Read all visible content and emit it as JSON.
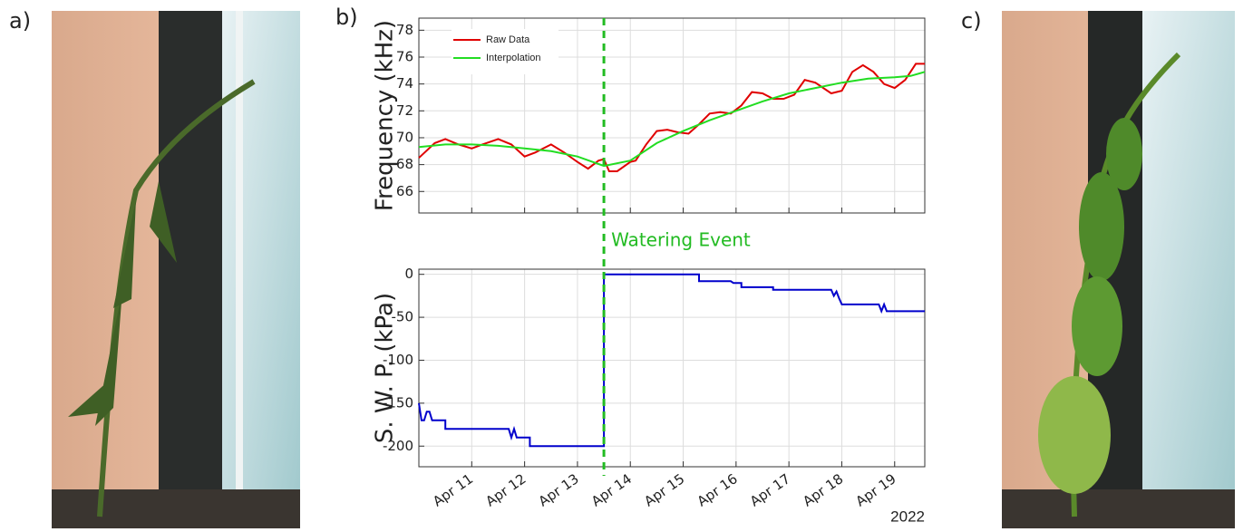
{
  "panel_labels": [
    "a)",
    "b)",
    "c)"
  ],
  "chart_data": [
    {
      "type": "line",
      "ylabel": "Frequency (kHz)",
      "xlim": [
        10.0,
        19.57
      ],
      "xticks": [
        11,
        12,
        13,
        14,
        15,
        16,
        17,
        18,
        19
      ],
      "ylim": [
        64.4,
        78.9
      ],
      "yticks": [
        66,
        68,
        70,
        72,
        74,
        76,
        78
      ],
      "grid": true,
      "legend": "upper left",
      "annotations": [
        {
          "text": "Watering Event",
          "x": 13.5,
          "color": "#22bb22"
        }
      ],
      "series": [
        {
          "name": "Raw Data",
          "color": "#e00000",
          "x": [
            10.0,
            10.3,
            10.5,
            10.75,
            11.0,
            11.2,
            11.5,
            11.75,
            12.0,
            12.2,
            12.5,
            12.75,
            13.0,
            13.2,
            13.4,
            13.5,
            13.6,
            13.75,
            14.0,
            14.1,
            14.3,
            14.5,
            14.7,
            14.9,
            15.1,
            15.3,
            15.5,
            15.7,
            15.9,
            16.1,
            16.3,
            16.5,
            16.7,
            16.9,
            17.1,
            17.3,
            17.5,
            17.8,
            18.0,
            18.2,
            18.4,
            18.6,
            18.8,
            19.0,
            19.2,
            19.4,
            19.57
          ],
          "values": [
            68.5,
            69.6,
            69.9,
            69.5,
            69.2,
            69.5,
            69.9,
            69.5,
            68.6,
            68.9,
            69.5,
            68.9,
            68.2,
            67.7,
            68.3,
            68.4,
            67.5,
            67.5,
            68.2,
            68.3,
            69.5,
            70.5,
            70.6,
            70.4,
            70.3,
            71.0,
            71.8,
            71.9,
            71.8,
            72.4,
            73.4,
            73.3,
            72.9,
            72.9,
            73.2,
            74.3,
            74.1,
            73.3,
            73.5,
            74.9,
            75.4,
            74.9,
            74.0,
            73.7,
            74.3,
            75.5,
            75.5
          ]
        },
        {
          "name": "Interpolation",
          "color": "#22dd22",
          "x": [
            10.0,
            10.5,
            11.0,
            11.5,
            12.0,
            12.5,
            13.0,
            13.5,
            14.0,
            14.5,
            15.0,
            15.5,
            16.0,
            16.5,
            17.0,
            17.5,
            18.0,
            18.5,
            19.0,
            19.3,
            19.57
          ],
          "values": [
            69.3,
            69.5,
            69.5,
            69.4,
            69.2,
            69.0,
            68.6,
            67.9,
            68.3,
            69.6,
            70.5,
            71.3,
            72.0,
            72.7,
            73.3,
            73.7,
            74.1,
            74.4,
            74.5,
            74.6,
            74.9
          ]
        }
      ]
    },
    {
      "type": "line",
      "ylabel": "S. W. P. (kPa)",
      "xlabel": "2022",
      "xlim": [
        10.0,
        19.57
      ],
      "xticks": [
        {
          "value": 11,
          "label": "Apr 11"
        },
        {
          "value": 12,
          "label": "Apr 12"
        },
        {
          "value": 13,
          "label": "Apr 13"
        },
        {
          "value": 14,
          "label": "Apr 14"
        },
        {
          "value": 15,
          "label": "Apr 15"
        },
        {
          "value": 16,
          "label": "Apr 16"
        },
        {
          "value": 17,
          "label": "Apr 17"
        },
        {
          "value": 18,
          "label": "Apr 18"
        },
        {
          "value": 19,
          "label": "Apr 19"
        }
      ],
      "ylim": [
        -224,
        6
      ],
      "yticks": [
        0,
        -50,
        -100,
        -150,
        -200
      ],
      "grid": true,
      "series": [
        {
          "color": "#0000cc",
          "x": [
            10.0,
            10.05,
            10.1,
            10.15,
            10.2,
            10.25,
            10.5,
            10.5,
            11.7,
            11.75,
            11.8,
            11.85,
            11.9,
            12.1,
            12.1,
            13.5,
            13.5,
            15.3,
            15.3,
            15.9,
            15.95,
            16.1,
            16.1,
            16.7,
            16.7,
            17.8,
            17.85,
            17.9,
            17.95,
            18.0,
            18.7,
            18.75,
            18.8,
            18.85,
            19.57
          ],
          "values": [
            -150,
            -170,
            -170,
            -160,
            -160,
            -170,
            -170,
            -180,
            -180,
            -190,
            -180,
            -190,
            -190,
            -190,
            -200,
            -200,
            0,
            0,
            -8,
            -8,
            -10,
            -10,
            -15,
            -15,
            -18,
            -18,
            -25,
            -20,
            -28,
            -35,
            -35,
            -43,
            -35,
            -43,
            -43
          ]
        }
      ]
    }
  ]
}
